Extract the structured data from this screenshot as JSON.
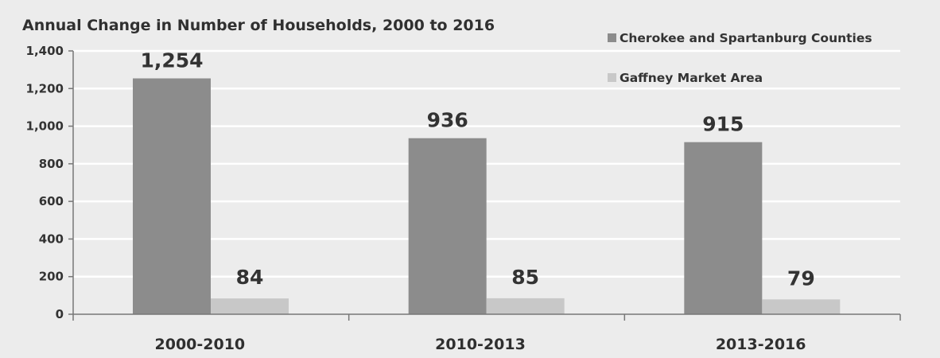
{
  "chart_data": {
    "type": "bar",
    "title": "Annual Change in Number of Households, 2000 to 2016",
    "categories": [
      "2000-2010",
      "2010-2013",
      "2013-2016"
    ],
    "series": [
      {
        "name": "Cherokee and Spartanburg Counties",
        "values": [
          1254,
          936,
          915
        ],
        "labels": [
          "1,254",
          "936",
          "915"
        ],
        "color": "#8c8c8c"
      },
      {
        "name": "Gaffney Market Area",
        "values": [
          84,
          85,
          79
        ],
        "labels": [
          "84",
          "85",
          "79"
        ],
        "color": "#c8c8c8"
      }
    ],
    "ylim": [
      0,
      1400
    ],
    "yticks": [
      0,
      200,
      400,
      600,
      800,
      1000,
      1200,
      1400
    ],
    "ytick_labels": [
      "0",
      "200",
      "400",
      "600",
      "800",
      "1,000",
      "1,200",
      "1,400"
    ],
    "grid": true,
    "legend_position": "top-right",
    "background_color": "#ececec"
  }
}
